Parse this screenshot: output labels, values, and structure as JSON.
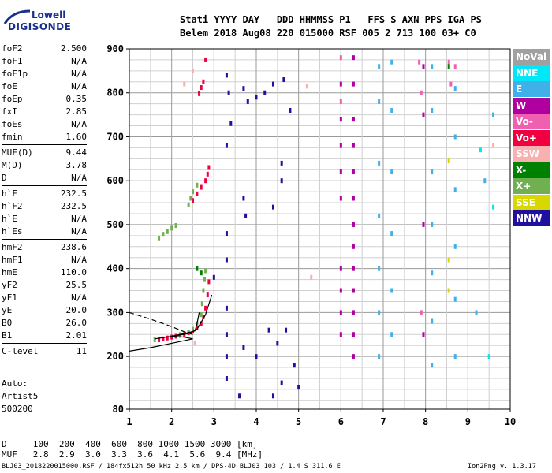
{
  "logo": {
    "line1": "Lowell",
    "line2": "DIGISONDE"
  },
  "header": {
    "labels": "Stati YYYY DAY   DDD HHMMSS P1   FFS S AXN PPS IGA PS",
    "values": "Belem 2018 Aug08 220 015000 RSF 005 2 713 100 03+ C0"
  },
  "params": {
    "group1": [
      {
        "name": "foF2",
        "value": "2.500"
      },
      {
        "name": "foF1",
        "value": "N/A"
      },
      {
        "name": "foF1p",
        "value": "N/A"
      },
      {
        "name": "foE",
        "value": "N/A"
      },
      {
        "name": "foEp",
        "value": "0.35"
      },
      {
        "name": "fxI",
        "value": "2.85"
      },
      {
        "name": "foEs",
        "value": "N/A"
      },
      {
        "name": "fmin",
        "value": "1.60"
      }
    ],
    "group2": [
      {
        "name": "MUF(D)",
        "value": "9.44"
      },
      {
        "name": "M(D)",
        "value": "3.78"
      },
      {
        "name": "D",
        "value": "N/A"
      }
    ],
    "group3": [
      {
        "name": "h`F",
        "value": "232.5"
      },
      {
        "name": "h`F2",
        "value": "232.5"
      },
      {
        "name": "h`E",
        "value": "N/A"
      },
      {
        "name": "h`Es",
        "value": "N/A"
      }
    ],
    "group4": [
      {
        "name": "hmF2",
        "value": "238.6"
      },
      {
        "name": "hmF1",
        "value": "N/A"
      },
      {
        "name": "hmE",
        "value": "110.0"
      },
      {
        "name": "yF2",
        "value": "25.5"
      },
      {
        "name": "yF1",
        "value": "N/A"
      },
      {
        "name": "yE",
        "value": "20.0"
      },
      {
        "name": "B0",
        "value": "26.0"
      },
      {
        "name": "B1",
        "value": "2.01"
      }
    ],
    "group5": [
      {
        "name": "C-level",
        "value": "11"
      }
    ]
  },
  "auto": {
    "line1": "Auto:",
    "line2": "Artist5",
    "line3": "500200"
  },
  "dist_table": {
    "row1": "D     100  200  400  600  800 1000 1500 3000 [km]",
    "row2": "MUF   2.8  2.9  3.0  3.3  3.6  4.1  5.6  9.4 [MHz]"
  },
  "footer": {
    "left": "BLJ03_2018220015000.RSF / 184fx512h 50 kHz 2.5 km / DPS-4D BLJ03 103 / 1.4 S 311.6 E",
    "right": "Ion2Png v. 1.3.17"
  },
  "legend": [
    {
      "label": "NoVal",
      "color": "#a0a0a0"
    },
    {
      "label": "NNE",
      "color": "#00e8f8"
    },
    {
      "label": "E",
      "color": "#40b0e8"
    },
    {
      "label": "W",
      "color": "#b000a0"
    },
    {
      "label": "Vo-",
      "color": "#f060b0"
    },
    {
      "label": "Vo+",
      "color": "#f00040"
    },
    {
      "label": "SSW",
      "color": "#f8b0b0"
    },
    {
      "label": "X-",
      "color": "#008000"
    },
    {
      "label": "X+",
      "color": "#70b050"
    },
    {
      "label": "SSE",
      "color": "#d8d800"
    },
    {
      "label": "NNW",
      "color": "#2010a0"
    }
  ],
  "chart_data": {
    "type": "scatter",
    "title": "",
    "xlabel": "",
    "ylabel": "",
    "xlim": [
      1,
      10
    ],
    "ylim": [
      80,
      900
    ],
    "xticks": [
      1,
      2,
      3,
      4,
      5,
      6,
      7,
      8,
      9,
      10
    ],
    "yticks": [
      80,
      200,
      300,
      400,
      500,
      600,
      700,
      800,
      900
    ],
    "grid": true,
    "series": [
      {
        "name": "Vo+",
        "color": "#f00040",
        "points": [
          [
            1.7,
            238
          ],
          [
            1.8,
            240
          ],
          [
            1.9,
            242
          ],
          [
            2.0,
            244
          ],
          [
            2.1,
            246
          ],
          [
            2.2,
            248
          ],
          [
            2.3,
            250
          ],
          [
            2.4,
            254
          ],
          [
            2.5,
            258
          ],
          [
            2.6,
            265
          ],
          [
            2.7,
            275
          ],
          [
            2.75,
            290
          ],
          [
            2.8,
            310
          ],
          [
            2.85,
            340
          ],
          [
            2.88,
            370
          ],
          [
            2.5,
            555
          ],
          [
            2.6,
            570
          ],
          [
            2.7,
            585
          ],
          [
            2.8,
            600
          ],
          [
            2.85,
            615
          ],
          [
            2.88,
            630
          ],
          [
            2.65,
            798
          ],
          [
            2.7,
            812
          ],
          [
            2.75,
            825
          ],
          [
            2.8,
            875
          ]
        ]
      },
      {
        "name": "X+",
        "color": "#70b050",
        "points": [
          [
            1.6,
            238
          ],
          [
            2.2,
            250
          ],
          [
            2.4,
            256
          ],
          [
            2.5,
            262
          ],
          [
            2.6,
            275
          ],
          [
            2.7,
            295
          ],
          [
            2.72,
            320
          ],
          [
            2.75,
            350
          ],
          [
            2.78,
            375
          ],
          [
            2.8,
            395
          ],
          [
            2.4,
            545
          ],
          [
            2.45,
            560
          ],
          [
            2.5,
            575
          ],
          [
            2.6,
            590
          ],
          [
            1.7,
            468
          ],
          [
            1.8,
            478
          ],
          [
            1.9,
            484
          ],
          [
            2.0,
            492
          ],
          [
            2.1,
            498
          ]
        ]
      },
      {
        "name": "Vo-",
        "color": "#f060b0",
        "points": [
          [
            6.0,
            880
          ],
          [
            6.0,
            780
          ],
          [
            7.85,
            870
          ],
          [
            7.9,
            800
          ],
          [
            8.55,
            870
          ],
          [
            8.6,
            820
          ],
          [
            8.7,
            860
          ],
          [
            6.3,
            500
          ],
          [
            7.9,
            300
          ]
        ]
      },
      {
        "name": "W",
        "color": "#b000a0",
        "points": [
          [
            6.0,
            250
          ],
          [
            6.0,
            300
          ],
          [
            6.0,
            350
          ],
          [
            6.0,
            400
          ],
          [
            6.0,
            560
          ],
          [
            6.0,
            620
          ],
          [
            6.0,
            680
          ],
          [
            6.0,
            740
          ],
          [
            6.0,
            820
          ],
          [
            6.3,
            200
          ],
          [
            6.3,
            250
          ],
          [
            6.3,
            300
          ],
          [
            6.3,
            350
          ],
          [
            6.3,
            400
          ],
          [
            6.3,
            450
          ],
          [
            6.3,
            500
          ],
          [
            6.3,
            560
          ],
          [
            6.3,
            620
          ],
          [
            6.3,
            680
          ],
          [
            6.3,
            740
          ],
          [
            6.3,
            820
          ],
          [
            6.3,
            880
          ],
          [
            7.95,
            250
          ],
          [
            7.95,
            500
          ],
          [
            7.95,
            750
          ],
          [
            7.95,
            860
          ]
        ]
      },
      {
        "name": "E",
        "color": "#40b0e8",
        "points": [
          [
            6.9,
            200
          ],
          [
            6.9,
            300
          ],
          [
            6.9,
            400
          ],
          [
            6.9,
            520
          ],
          [
            6.9,
            640
          ],
          [
            6.9,
            780
          ],
          [
            6.9,
            860
          ],
          [
            7.2,
            250
          ],
          [
            7.2,
            350
          ],
          [
            7.2,
            480
          ],
          [
            7.2,
            620
          ],
          [
            7.2,
            760
          ],
          [
            7.2,
            870
          ],
          [
            8.15,
            180
          ],
          [
            8.15,
            280
          ],
          [
            8.15,
            390
          ],
          [
            8.15,
            500
          ],
          [
            8.15,
            620
          ],
          [
            8.15,
            760
          ],
          [
            8.15,
            860
          ],
          [
            8.7,
            200
          ],
          [
            8.7,
            330
          ],
          [
            8.7,
            450
          ],
          [
            8.7,
            580
          ],
          [
            8.7,
            700
          ],
          [
            8.7,
            810
          ],
          [
            9.6,
            750
          ],
          [
            9.4,
            600
          ],
          [
            9.2,
            300
          ]
        ]
      },
      {
        "name": "NNW",
        "color": "#2010a0",
        "points": [
          [
            3.3,
            840
          ],
          [
            3.35,
            800
          ],
          [
            3.4,
            730
          ],
          [
            3.3,
            680
          ],
          [
            3.7,
            810
          ],
          [
            3.8,
            780
          ],
          [
            4.0,
            790
          ],
          [
            4.2,
            800
          ],
          [
            4.4,
            820
          ],
          [
            4.65,
            830
          ],
          [
            4.8,
            760
          ],
          [
            4.6,
            600
          ],
          [
            4.6,
            640
          ],
          [
            4.4,
            540
          ],
          [
            3.7,
            560
          ],
          [
            3.75,
            520
          ],
          [
            3.3,
            480
          ],
          [
            3.3,
            420
          ],
          [
            3.0,
            380
          ],
          [
            3.3,
            310
          ],
          [
            3.3,
            250
          ],
          [
            3.3,
            200
          ],
          [
            3.3,
            150
          ],
          [
            3.7,
            220
          ],
          [
            4.0,
            200
          ],
          [
            4.3,
            260
          ],
          [
            4.5,
            230
          ],
          [
            4.7,
            260
          ],
          [
            4.9,
            180
          ],
          [
            4.6,
            140
          ],
          [
            4.4,
            110
          ],
          [
            5.0,
            130
          ],
          [
            3.6,
            110
          ]
        ]
      },
      {
        "name": "SSW",
        "color": "#f8b0b0",
        "points": [
          [
            2.3,
            820
          ],
          [
            2.5,
            850
          ],
          [
            5.2,
            815
          ],
          [
            5.3,
            380
          ],
          [
            2.55,
            230
          ],
          [
            9.6,
            680
          ]
        ]
      },
      {
        "name": "SSE",
        "color": "#d8d800",
        "points": [
          [
            8.55,
            350
          ],
          [
            8.55,
            420
          ],
          [
            8.55,
            645
          ]
        ]
      },
      {
        "name": "X-",
        "color": "#008000",
        "points": [
          [
            8.55,
            860
          ],
          [
            2.7,
            390
          ],
          [
            2.6,
            400
          ]
        ]
      },
      {
        "name": "NNE",
        "color": "#00e8f8",
        "points": [
          [
            9.6,
            540
          ],
          [
            9.3,
            670
          ],
          [
            9.5,
            200
          ]
        ]
      }
    ],
    "traces": [
      {
        "name": "X trace",
        "style": "solid",
        "points": [
          [
            1.0,
            212
          ],
          [
            1.5,
            220
          ],
          [
            2.1,
            232
          ],
          [
            2.5,
            240
          ],
          [
            2.3,
            244
          ],
          [
            2.0,
            246
          ],
          [
            2.3,
            252
          ],
          [
            2.55,
            258
          ],
          [
            2.6,
            275
          ],
          [
            2.65,
            300
          ]
        ]
      },
      {
        "name": "O trace",
        "style": "solid",
        "points": [
          [
            1.6,
            240
          ],
          [
            2.1,
            247
          ],
          [
            2.4,
            252
          ],
          [
            2.6,
            262
          ],
          [
            2.8,
            295
          ],
          [
            2.95,
            340
          ]
        ]
      },
      {
        "name": "model",
        "style": "dashed",
        "points": [
          [
            1.0,
            300
          ],
          [
            1.5,
            285
          ],
          [
            2.0,
            268
          ],
          [
            2.3,
            256
          ],
          [
            2.5,
            250
          ]
        ]
      }
    ]
  }
}
